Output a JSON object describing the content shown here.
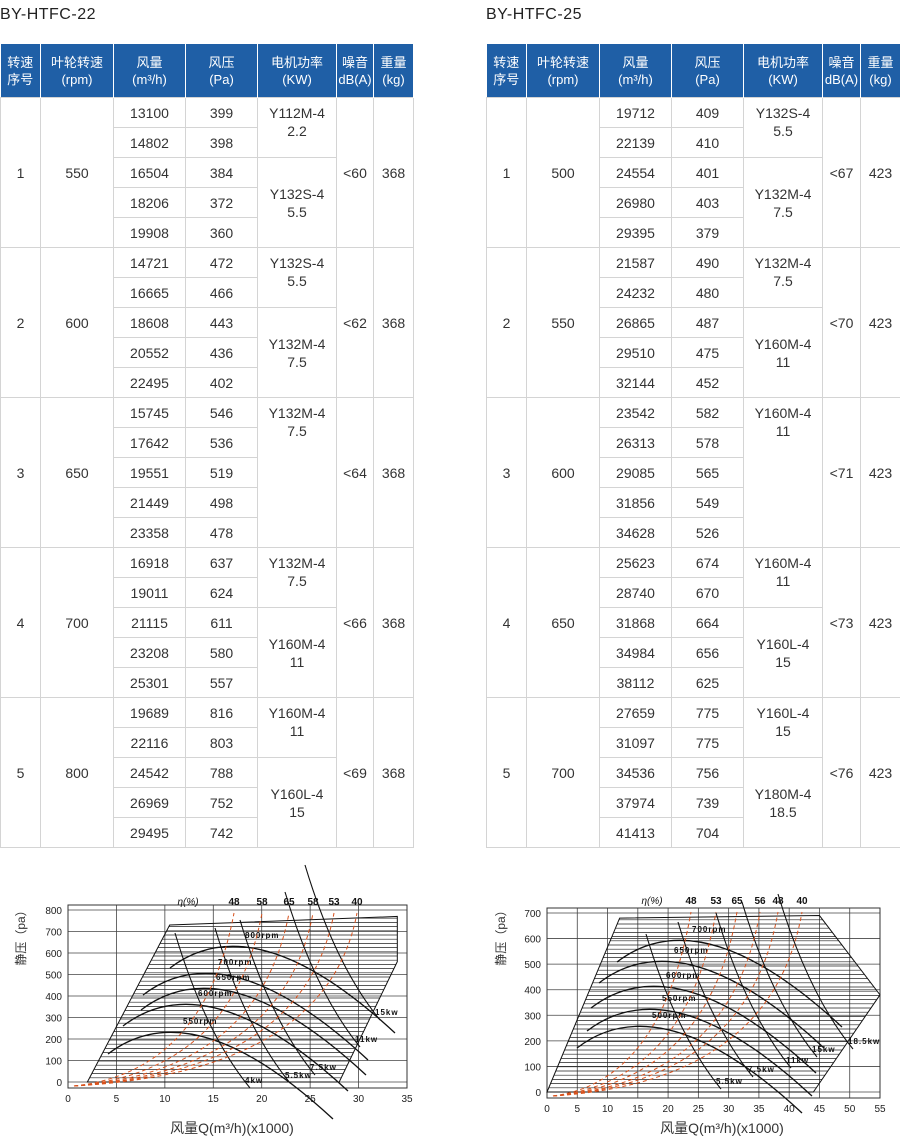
{
  "tables": [
    {
      "title": "BY-HTFC-22",
      "headers": [
        [
          "转速",
          "序号"
        ],
        [
          "叶轮转速",
          "(rpm)"
        ],
        [
          "风量",
          "(m³/h)"
        ],
        [
          "风压",
          "(Pa)"
        ],
        [
          "电机功率",
          "(KW)"
        ],
        [
          "噪音",
          "dB(A)"
        ],
        [
          "重量",
          "(kg)"
        ]
      ],
      "groups": [
        {
          "no": 1,
          "rpm": 550,
          "noise": "<60",
          "weight": 368,
          "rows": [
            [
              13100,
              399
            ],
            [
              14802,
              398
            ],
            [
              16504,
              384
            ],
            [
              18206,
              372
            ],
            [
              19908,
              360
            ]
          ],
          "motors": [
            {
              "model": "Y112M-4",
              "power": 2.2
            },
            {
              "model": "Y132S-4",
              "power": 5.5
            }
          ]
        },
        {
          "no": 2,
          "rpm": 600,
          "noise": "<62",
          "weight": 368,
          "rows": [
            [
              14721,
              472
            ],
            [
              16665,
              466
            ],
            [
              18608,
              443
            ],
            [
              20552,
              436
            ],
            [
              22495,
              402
            ]
          ],
          "motors": [
            {
              "model": "Y132S-4",
              "power": 5.5
            },
            {
              "model": "Y132M-4",
              "power": 7.5
            }
          ]
        },
        {
          "no": 3,
          "rpm": 650,
          "noise": "<64",
          "weight": 368,
          "rows": [
            [
              15745,
              546
            ],
            [
              17642,
              536
            ],
            [
              19551,
              519
            ],
            [
              21449,
              498
            ],
            [
              23358,
              478
            ]
          ],
          "motors": [
            {
              "model": "Y132M-4",
              "power": 7.5
            }
          ]
        },
        {
          "no": 4,
          "rpm": 700,
          "noise": "<66",
          "weight": 368,
          "rows": [
            [
              16918,
              637
            ],
            [
              19011,
              624
            ],
            [
              21115,
              611
            ],
            [
              23208,
              580
            ],
            [
              25301,
              557
            ]
          ],
          "motors": [
            {
              "model": "Y132M-4",
              "power": 7.5
            },
            {
              "model": "Y160M-4",
              "power": 11
            }
          ]
        },
        {
          "no": 5,
          "rpm": 800,
          "noise": "<69",
          "weight": 368,
          "rows": [
            [
              19689,
              816
            ],
            [
              22116,
              803
            ],
            [
              24542,
              788
            ],
            [
              26969,
              752
            ],
            [
              29495,
              742
            ]
          ],
          "motors": [
            {
              "model": "Y160M-4",
              "power": 11
            },
            {
              "model": "Y160L-4",
              "power": 15
            }
          ]
        }
      ]
    },
    {
      "title": "BY-HTFC-25",
      "headers": [
        [
          "转速",
          "序号"
        ],
        [
          "叶轮转速",
          "(rpm)"
        ],
        [
          "风量",
          "(m³/h)"
        ],
        [
          "风压",
          "(Pa)"
        ],
        [
          "电机功率",
          "(KW)"
        ],
        [
          "噪音",
          "dB(A)"
        ],
        [
          "重量",
          "(kg)"
        ]
      ],
      "groups": [
        {
          "no": 1,
          "rpm": 500,
          "noise": "<67",
          "weight": 423,
          "rows": [
            [
              19712,
              409
            ],
            [
              22139,
              410
            ],
            [
              24554,
              401
            ],
            [
              26980,
              403
            ],
            [
              29395,
              379
            ]
          ],
          "motors": [
            {
              "model": "Y132S-4",
              "power": 5.5
            },
            {
              "model": "Y132M-4",
              "power": 7.5
            }
          ]
        },
        {
          "no": 2,
          "rpm": 550,
          "noise": "<70",
          "weight": 423,
          "rows": [
            [
              21587,
              490
            ],
            [
              24232,
              480
            ],
            [
              26865,
              487
            ],
            [
              29510,
              475
            ],
            [
              32144,
              452
            ]
          ],
          "motors": [
            {
              "model": "Y132M-4",
              "power": 7.5
            },
            {
              "model": "Y160M-4",
              "power": 11
            }
          ]
        },
        {
          "no": 3,
          "rpm": 600,
          "noise": "<71",
          "weight": 423,
          "rows": [
            [
              23542,
              582
            ],
            [
              26313,
              578
            ],
            [
              29085,
              565
            ],
            [
              31856,
              549
            ],
            [
              34628,
              526
            ]
          ],
          "motors": [
            {
              "model": "Y160M-4",
              "power": 11
            }
          ]
        },
        {
          "no": 4,
          "rpm": 650,
          "noise": "<73",
          "weight": 423,
          "rows": [
            [
              25623,
              674
            ],
            [
              28740,
              670
            ],
            [
              31868,
              664
            ],
            [
              34984,
              656
            ],
            [
              38112,
              625
            ]
          ],
          "motors": [
            {
              "model": "Y160M-4",
              "power": 11
            },
            {
              "model": "Y160L-4",
              "power": 15
            }
          ]
        },
        {
          "no": 5,
          "rpm": 700,
          "noise": "<76",
          "weight": 423,
          "rows": [
            [
              27659,
              775
            ],
            [
              31097,
              775
            ],
            [
              34536,
              756
            ],
            [
              37974,
              739
            ],
            [
              41413,
              704
            ]
          ],
          "motors": [
            {
              "model": "Y160L-4",
              "power": 15
            },
            {
              "model": "Y180M-4",
              "power": 18.5
            }
          ]
        }
      ]
    }
  ],
  "charts": [
    {
      "ylabel": "静压（pa）",
      "xlabel": "风量Q(m³/h)(x1000)",
      "xlim": [
        0,
        35
      ],
      "xticks": [
        0,
        5,
        10,
        15,
        20,
        25,
        30,
        35
      ],
      "ylim": [
        0,
        800
      ],
      "yticks": [
        0,
        100,
        200,
        300,
        400,
        500,
        600,
        700,
        800
      ],
      "efficiency_label": "η(%)",
      "efficiency": [
        48,
        58,
        65,
        58,
        53,
        40
      ],
      "speed_labels": [
        "800rpm",
        "700rpm",
        "650rpm",
        "600rpm",
        "550rpm"
      ],
      "power_labels": [
        "15kw",
        "11kw",
        "7.5kw",
        "5.5kw",
        "4kw"
      ]
    },
    {
      "ylabel": "静压（pa）",
      "xlabel": "风量Q(m³/h)(x1000)",
      "xlim": [
        0,
        55
      ],
      "xticks": [
        0,
        5,
        10,
        15,
        20,
        25,
        30,
        35,
        40,
        45,
        50,
        55
      ],
      "ylim": [
        0,
        700
      ],
      "yticks": [
        0,
        100,
        200,
        300,
        400,
        500,
        600,
        700
      ],
      "efficiency_label": "η(%)",
      "efficiency": [
        48,
        53,
        65,
        56,
        48,
        40
      ],
      "speed_labels": [
        "700rpm",
        "650rpm",
        "600rpm",
        "550rpm",
        "500rpm"
      ],
      "power_labels": [
        "18.5kw",
        "15kw",
        "11kw",
        "7.5kw",
        "5.5kw"
      ]
    }
  ]
}
